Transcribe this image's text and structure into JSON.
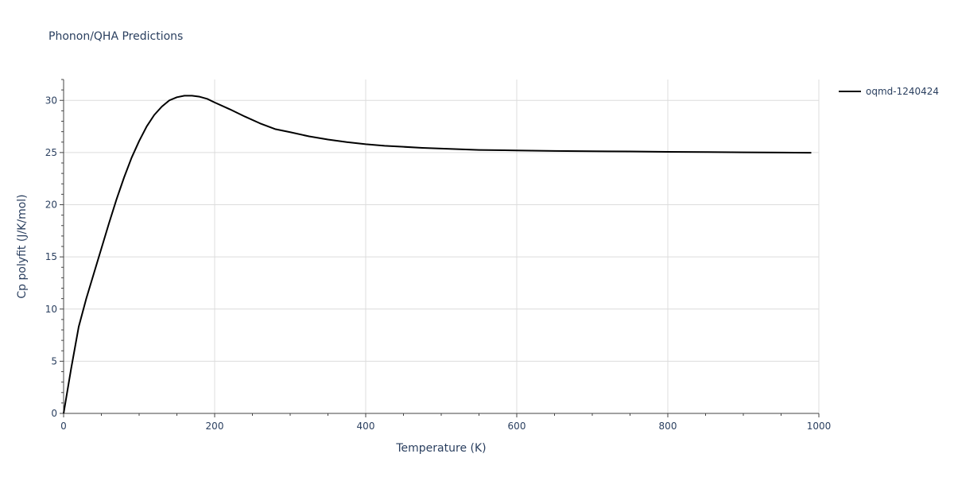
{
  "chart_data": {
    "type": "line",
    "title": "Phonon/QHA Predictions",
    "xlabel": "Temperature (K)",
    "ylabel": "Cp polyfit (J/K/mol)",
    "xlim": [
      0,
      1000
    ],
    "ylim": [
      0,
      32
    ],
    "xticks": [
      0,
      200,
      400,
      600,
      800,
      1000
    ],
    "yticks": [
      0,
      5,
      10,
      15,
      20,
      25,
      30
    ],
    "grid": true,
    "legend": "top-right",
    "series": [
      {
        "name": "oqmd-1240424",
        "color": "#000000",
        "x": [
          0,
          10,
          20,
          30,
          40,
          50,
          60,
          70,
          80,
          90,
          100,
          110,
          120,
          130,
          140,
          150,
          160,
          170,
          180,
          190,
          200,
          220,
          240,
          260,
          280,
          300,
          325,
          350,
          375,
          400,
          425,
          450,
          475,
          500,
          550,
          600,
          650,
          700,
          750,
          800,
          850,
          900,
          950,
          990
        ],
        "y": [
          0,
          4.3,
          8.3,
          11.0,
          13.4,
          15.8,
          18.2,
          20.5,
          22.6,
          24.5,
          26.1,
          27.5,
          28.6,
          29.4,
          30.0,
          30.3,
          30.45,
          30.45,
          30.35,
          30.15,
          29.8,
          29.15,
          28.45,
          27.8,
          27.25,
          26.95,
          26.55,
          26.25,
          26.0,
          25.8,
          25.65,
          25.55,
          25.45,
          25.38,
          25.25,
          25.2,
          25.15,
          25.12,
          25.1,
          25.07,
          25.05,
          25.02,
          25.0,
          24.98
        ]
      }
    ]
  }
}
